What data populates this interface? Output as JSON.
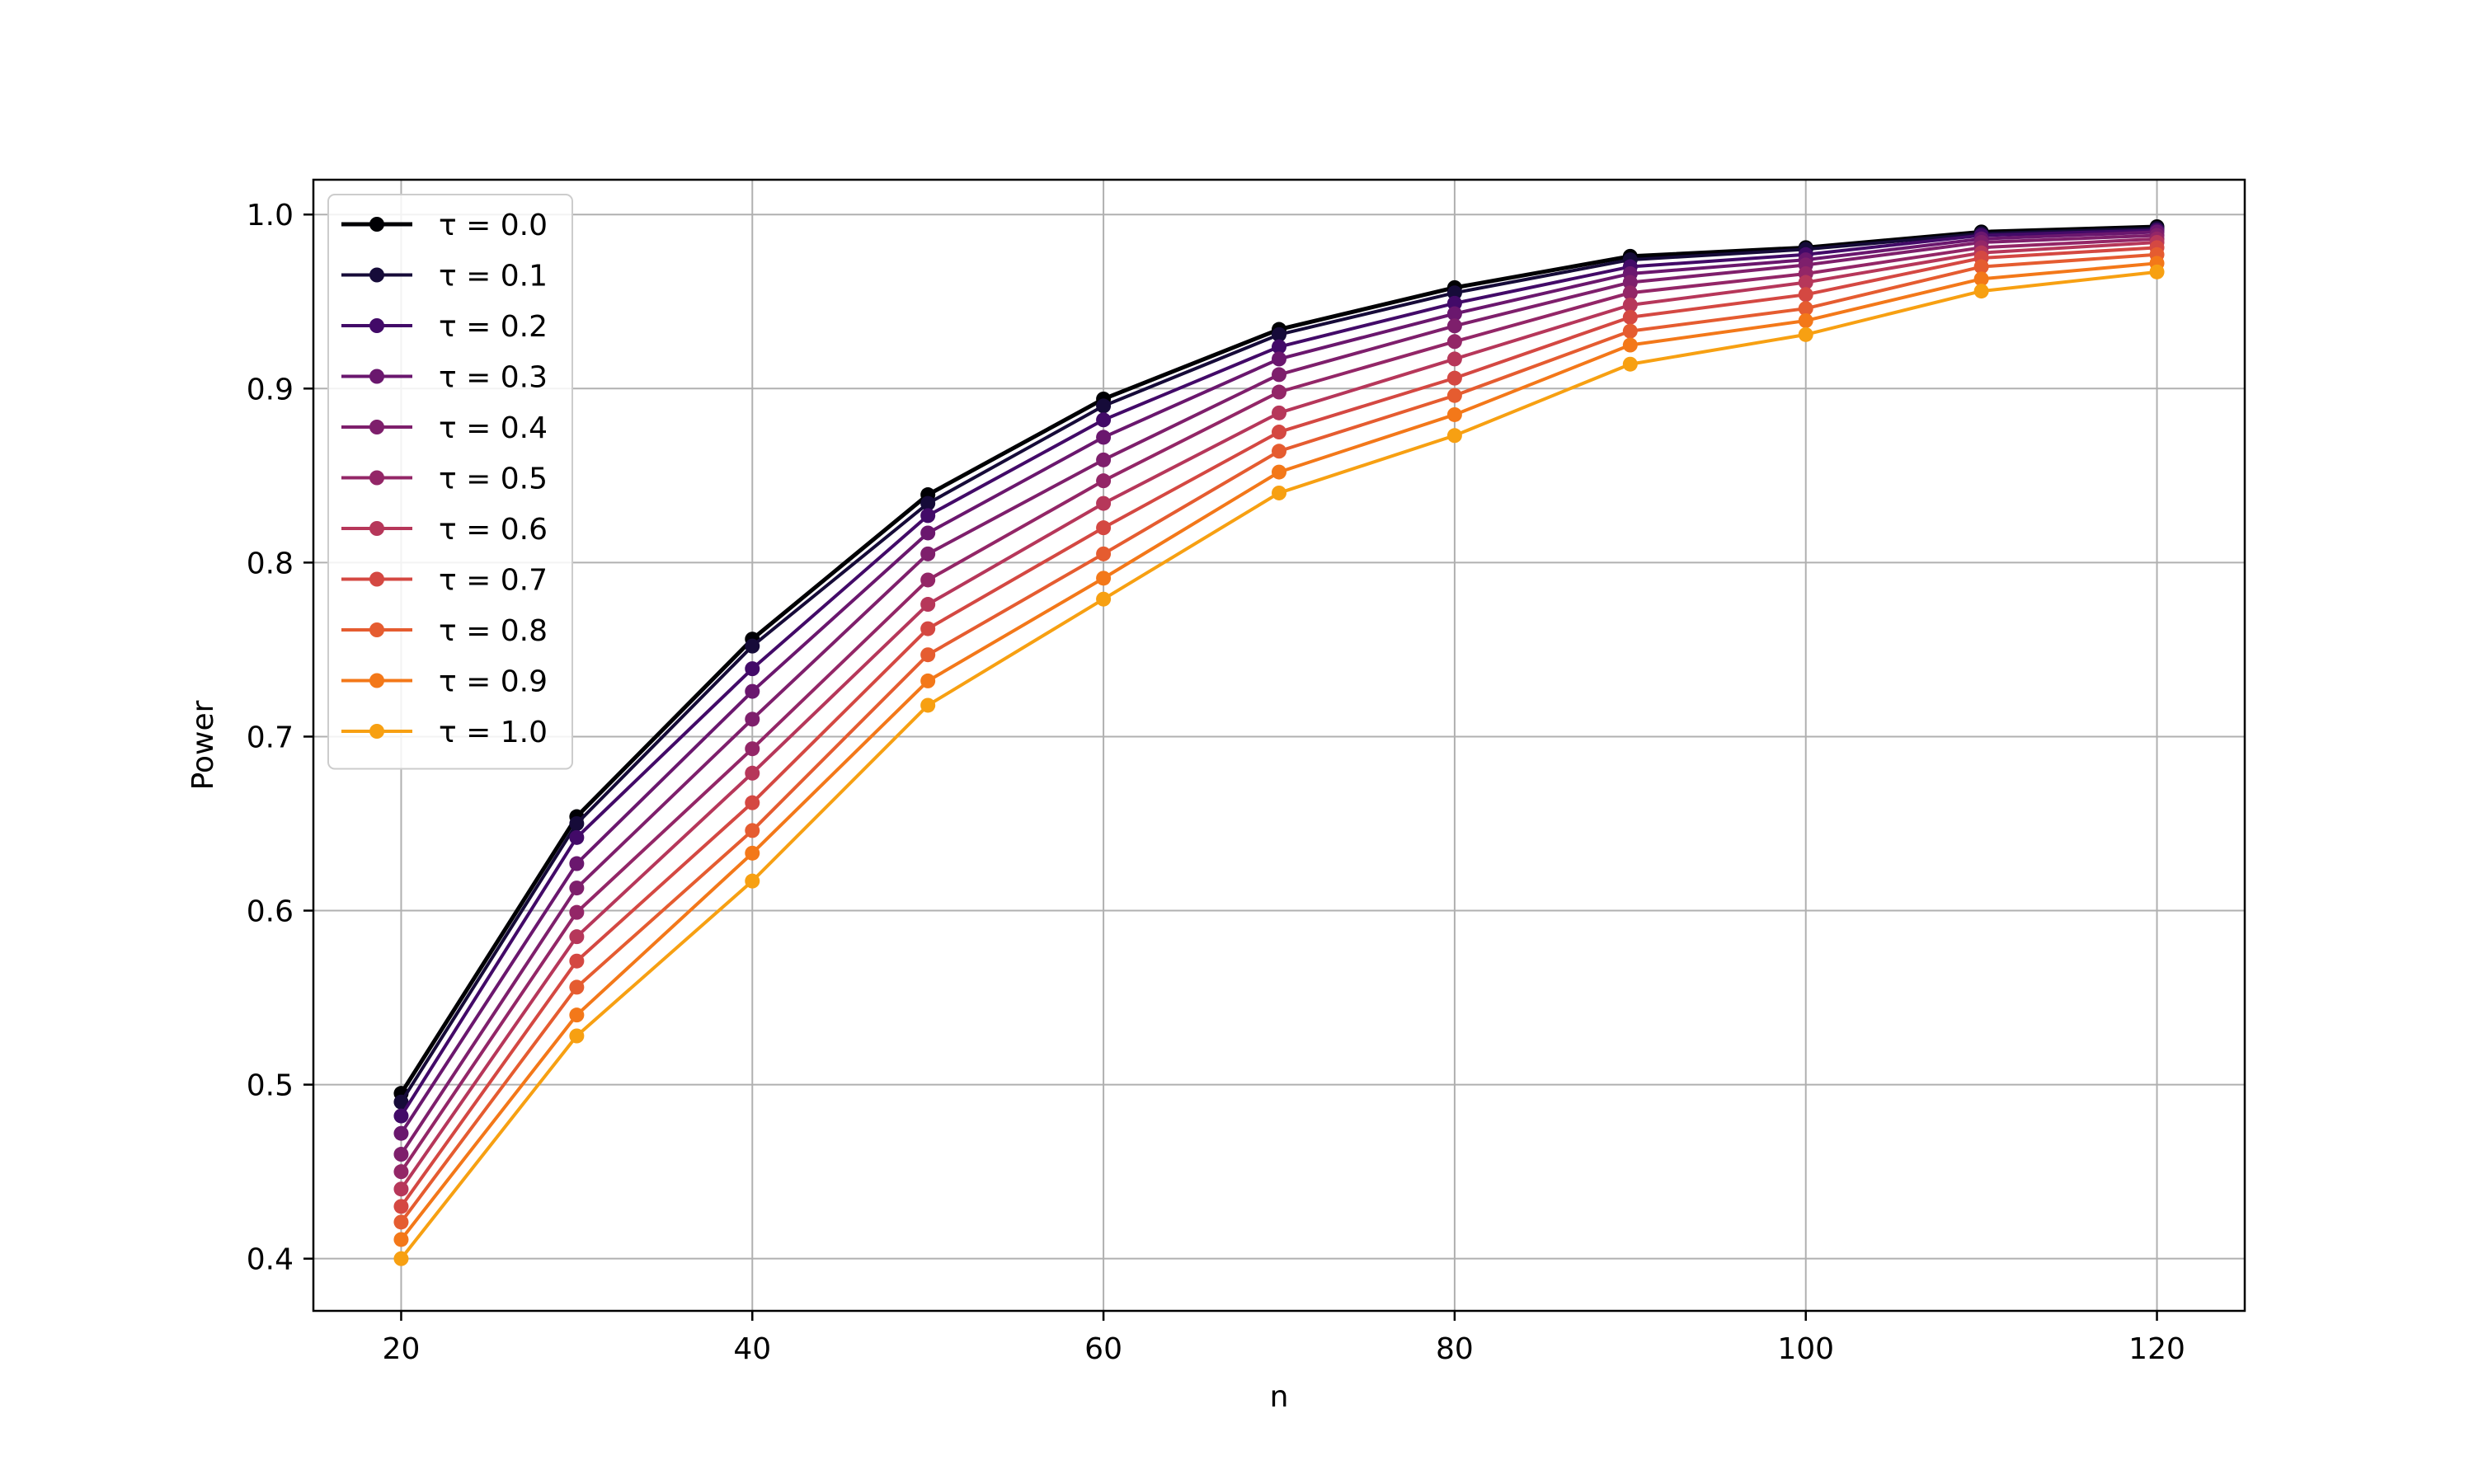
{
  "chart_data": {
    "type": "line",
    "title": "",
    "xlabel": "n",
    "ylabel": "Power",
    "x": [
      20,
      30,
      40,
      50,
      60,
      70,
      80,
      90,
      100,
      110,
      120
    ],
    "xlim": [
      15,
      125
    ],
    "ylim": [
      0.37,
      1.02
    ],
    "xticks": [
      "20",
      "40",
      "60",
      "80",
      "100",
      "120"
    ],
    "yticks": [
      "0.4",
      "0.5",
      "0.6",
      "0.7",
      "0.8",
      "0.9",
      "1.0"
    ],
    "grid": true,
    "legend_position": "top-left",
    "series": [
      {
        "name": "τ = 0.0",
        "color": "#000004",
        "values": [
          0.495,
          0.654,
          0.756,
          0.839,
          0.894,
          0.934,
          0.958,
          0.976,
          0.981,
          0.99,
          0.993
        ]
      },
      {
        "name": "τ = 0.1",
        "color": "#160b39",
        "values": [
          0.49,
          0.65,
          0.752,
          0.834,
          0.89,
          0.931,
          0.955,
          0.974,
          0.98,
          0.989,
          0.992
        ]
      },
      {
        "name": "τ = 0.2",
        "color": "#420a68",
        "values": [
          0.482,
          0.642,
          0.739,
          0.827,
          0.882,
          0.924,
          0.949,
          0.97,
          0.977,
          0.988,
          0.991
        ]
      },
      {
        "name": "τ = 0.3",
        "color": "#6a176e",
        "values": [
          0.472,
          0.627,
          0.726,
          0.817,
          0.872,
          0.917,
          0.943,
          0.966,
          0.974,
          0.986,
          0.99
        ]
      },
      {
        "name": "τ = 0.4",
        "color": "#7e1f6c",
        "values": [
          0.46,
          0.613,
          0.71,
          0.805,
          0.859,
          0.908,
          0.936,
          0.961,
          0.971,
          0.984,
          0.988
        ]
      },
      {
        "name": "τ = 0.5",
        "color": "#932667",
        "values": [
          0.45,
          0.599,
          0.693,
          0.79,
          0.847,
          0.898,
          0.927,
          0.955,
          0.966,
          0.981,
          0.986
        ]
      },
      {
        "name": "τ = 0.6",
        "color": "#b6375a",
        "values": [
          0.44,
          0.585,
          0.679,
          0.776,
          0.834,
          0.886,
          0.917,
          0.948,
          0.961,
          0.978,
          0.984
        ]
      },
      {
        "name": "τ = 0.7",
        "color": "#d44842",
        "values": [
          0.43,
          0.571,
          0.662,
          0.762,
          0.82,
          0.875,
          0.906,
          0.941,
          0.954,
          0.975,
          0.981
        ]
      },
      {
        "name": "τ = 0.8",
        "color": "#e55c30",
        "values": [
          0.421,
          0.556,
          0.646,
          0.747,
          0.805,
          0.864,
          0.896,
          0.933,
          0.946,
          0.97,
          0.977
        ]
      },
      {
        "name": "τ = 0.9",
        "color": "#f37819",
        "values": [
          0.411,
          0.54,
          0.633,
          0.732,
          0.791,
          0.852,
          0.885,
          0.925,
          0.939,
          0.963,
          0.972
        ]
      },
      {
        "name": "τ = 1.0",
        "color": "#f7a012",
        "values": [
          0.4,
          0.528,
          0.617,
          0.718,
          0.779,
          0.84,
          0.873,
          0.914,
          0.931,
          0.956,
          0.967
        ]
      }
    ]
  }
}
